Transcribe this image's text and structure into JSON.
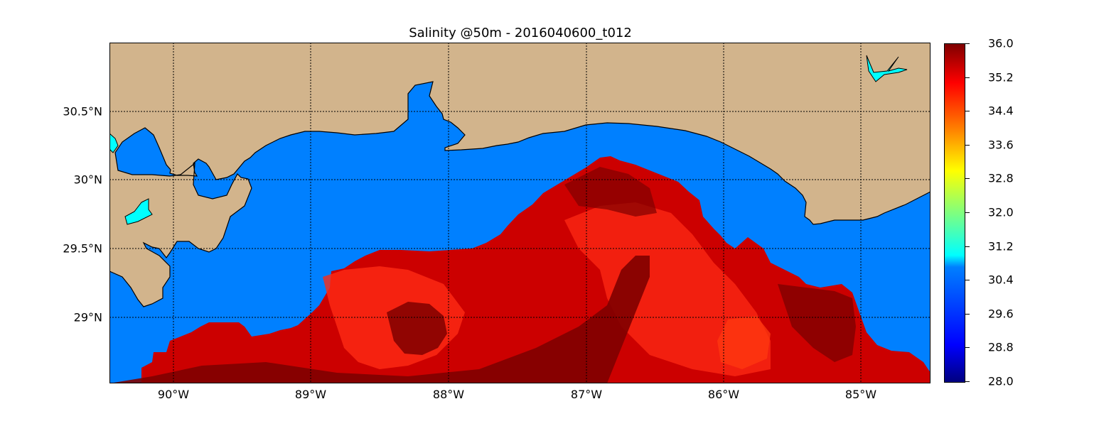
{
  "title": "Salinity @50m - 2016040600_t012",
  "map": {
    "x_tick_labels": [
      "90°W",
      "89°W",
      "88°W",
      "87°W",
      "86°W",
      "85°W"
    ],
    "y_tick_labels": [
      "30.5°N",
      "30°N",
      "29.5°N",
      "29°N"
    ],
    "grid": true,
    "colors": {
      "land": "#d2b48c",
      "low_salinity_water": "#0080ff",
      "lake": "#00ffff",
      "high_salinity": "#cc0000"
    }
  },
  "colorbar": {
    "colormap": "jet",
    "range": [
      28.0,
      36.0
    ],
    "tick_labels": [
      "36.0",
      "35.2",
      "34.4",
      "33.6",
      "32.8",
      "32.0",
      "31.2",
      "30.4",
      "29.6",
      "28.8",
      "28.0"
    ]
  }
}
